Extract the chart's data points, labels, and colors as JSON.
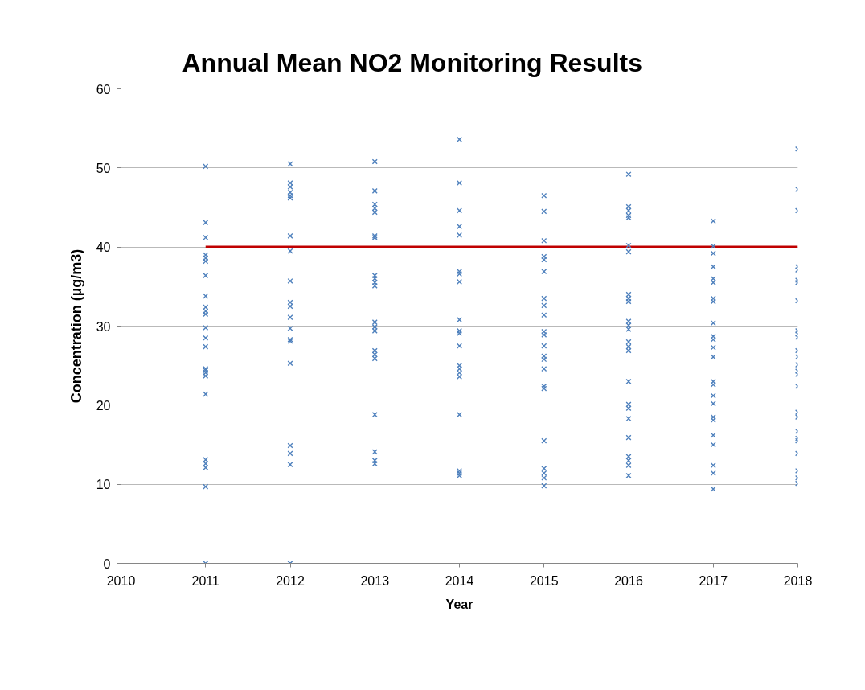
{
  "chart_data": {
    "type": "scatter",
    "title": "Annual Mean NO2 Monitoring Results",
    "xlabel": "Year",
    "ylabel": "Concentration (µg/m3)",
    "xlim": [
      2010,
      2018
    ],
    "xticks": [
      2010,
      2011,
      2012,
      2013,
      2014,
      2015,
      2016,
      2017,
      2018
    ],
    "ylim": [
      0,
      60
    ],
    "yticks": [
      0,
      10,
      20,
      30,
      40,
      50,
      60
    ],
    "grid": "y",
    "series": [
      {
        "type": "line",
        "color": "#c00000",
        "x": [
          2011,
          2018
        ],
        "values": [
          40,
          40
        ]
      },
      {
        "color": "#4f81bd",
        "marker": "cross",
        "x": [
          2011,
          2011,
          2011,
          2011,
          2011,
          2011,
          2011,
          2011,
          2011,
          2011,
          2011,
          2011,
          2011,
          2011,
          2011,
          2011,
          2011,
          2011,
          2011,
          2011,
          2011,
          2011,
          2011,
          2011,
          2012,
          2012,
          2012,
          2012,
          2012,
          2012,
          2012,
          2012,
          2012,
          2012,
          2012,
          2012,
          2012,
          2012,
          2012,
          2012,
          2012,
          2012,
          2012,
          2012,
          2013,
          2013,
          2013,
          2013,
          2013,
          2013,
          2013,
          2013,
          2013,
          2013,
          2013,
          2013,
          2013,
          2013,
          2013,
          2013,
          2013,
          2013,
          2013,
          2013,
          2013,
          2014,
          2014,
          2014,
          2014,
          2014,
          2014,
          2014,
          2014,
          2014,
          2014,
          2014,
          2014,
          2014,
          2014,
          2014,
          2014,
          2014,
          2014,
          2014,
          2014,
          2015,
          2015,
          2015,
          2015,
          2015,
          2015,
          2015,
          2015,
          2015,
          2015,
          2015,
          2015,
          2015,
          2015,
          2015,
          2015,
          2015,
          2015,
          2015,
          2015,
          2015,
          2015,
          2016,
          2016,
          2016,
          2016,
          2016,
          2016,
          2016,
          2016,
          2016,
          2016,
          2016,
          2016,
          2016,
          2016,
          2016,
          2016,
          2016,
          2016,
          2016,
          2016,
          2016,
          2016,
          2016,
          2016,
          2016,
          2017,
          2017,
          2017,
          2017,
          2017,
          2017,
          2017,
          2017,
          2017,
          2017,
          2017,
          2017,
          2017,
          2017,
          2017,
          2017,
          2017,
          2017,
          2017,
          2017,
          2017,
          2017,
          2017,
          2017,
          2018,
          2018,
          2018,
          2018,
          2018,
          2018,
          2018,
          2018,
          2018,
          2018,
          2018,
          2018,
          2018,
          2018,
          2018,
          2018,
          2018,
          2018,
          2018,
          2018,
          2018,
          2018,
          2018,
          2018,
          2018,
          2018
        ],
        "values": [
          50.2,
          43.1,
          41.2,
          39.0,
          38.6,
          38.2,
          36.4,
          33.8,
          32.4,
          31.9,
          31.5,
          29.8,
          28.5,
          27.4,
          24.6,
          24.4,
          24.1,
          23.7,
          21.4,
          13.1,
          12.6,
          12.1,
          9.7,
          0,
          50.5,
          48.1,
          47.6,
          46.9,
          46.5,
          46.2,
          41.4,
          39.5,
          35.7,
          33.0,
          32.5,
          31.1,
          29.7,
          28.3,
          28.1,
          25.3,
          14.9,
          13.9,
          12.5,
          0,
          50.8,
          47.1,
          45.4,
          44.9,
          44.4,
          41.4,
          41.2,
          36.4,
          36.0,
          35.5,
          35.1,
          30.5,
          29.9,
          29.4,
          26.9,
          26.4,
          25.9,
          18.8,
          14.1,
          13.0,
          12.6,
          53.6,
          48.1,
          44.6,
          42.6,
          41.5,
          36.9,
          36.6,
          35.6,
          30.8,
          29.4,
          29.1,
          27.5,
          25.0,
          24.6,
          24.1,
          23.6,
          18.8,
          11.7,
          11.4,
          11.1,
          46.5,
          44.5,
          40.8,
          38.8,
          38.4,
          36.9,
          33.5,
          32.6,
          31.4,
          29.3,
          28.9,
          27.5,
          26.2,
          25.8,
          24.6,
          22.4,
          22.1,
          15.5,
          12.0,
          11.4,
          10.8,
          9.8,
          49.2,
          45.1,
          44.6,
          44.0,
          43.7,
          40.2,
          39.4,
          34.0,
          33.5,
          33.1,
          30.6,
          30.1,
          29.6,
          28.0,
          27.4,
          26.9,
          23.0,
          20.1,
          19.6,
          18.3,
          15.9,
          13.5,
          13.0,
          12.4,
          11.1,
          43.3,
          40.1,
          39.2,
          37.5,
          36.0,
          35.5,
          33.5,
          33.1,
          30.4,
          28.7,
          28.3,
          27.3,
          26.1,
          23.0,
          22.6,
          21.2,
          20.2,
          18.5,
          18.1,
          16.2,
          15.0,
          12.4,
          11.4,
          9.4,
          52.4,
          47.3,
          44.6,
          37.5,
          37.1,
          35.8,
          35.5,
          33.2,
          29.4,
          29.0,
          28.6,
          26.9,
          26.1,
          25.1,
          24.3,
          23.9,
          22.4,
          19.1,
          18.5,
          16.7,
          15.8,
          15.5,
          13.9,
          11.7,
          10.8,
          10.1
        ]
      }
    ]
  }
}
